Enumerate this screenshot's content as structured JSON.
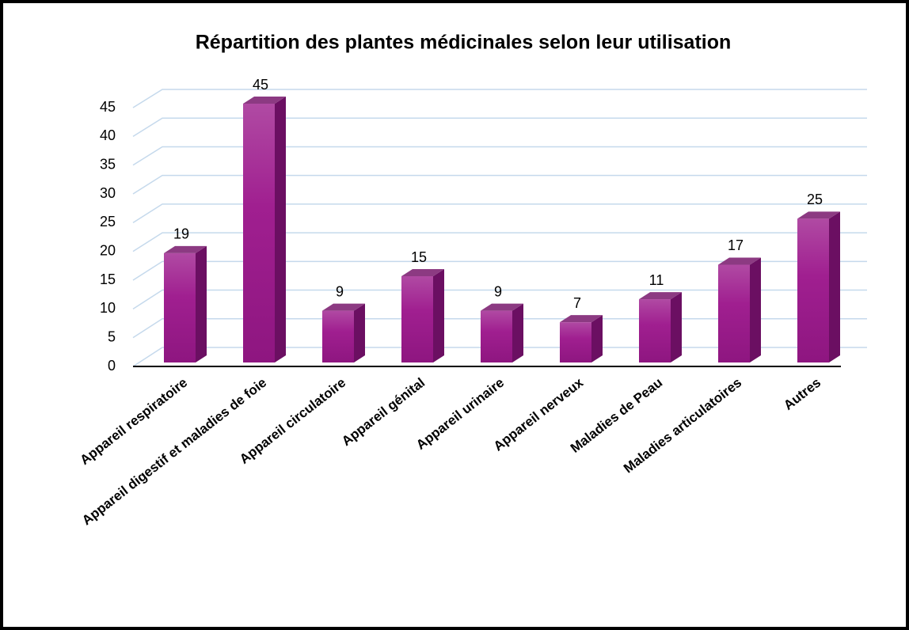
{
  "chart_data": {
    "type": "bar3d",
    "title": "Répartition des plantes médicinales selon leur utilisation",
    "categories": [
      "Appareil respiratoire",
      "Appareil digestif et maladies de foie",
      "Appareil circulatoire",
      "Appareil génital",
      "Appareil urinaire",
      "Appareil nerveux",
      "Maladies de Peau",
      "Maladies articulatoires",
      "Autres"
    ],
    "values": [
      19,
      45,
      9,
      15,
      9,
      7,
      11,
      17,
      25
    ],
    "color": "#a01f90",
    "ylim": [
      0,
      45
    ],
    "yticks": [
      0,
      5,
      10,
      15,
      20,
      25,
      30,
      35,
      40,
      45
    ],
    "grid": true
  }
}
